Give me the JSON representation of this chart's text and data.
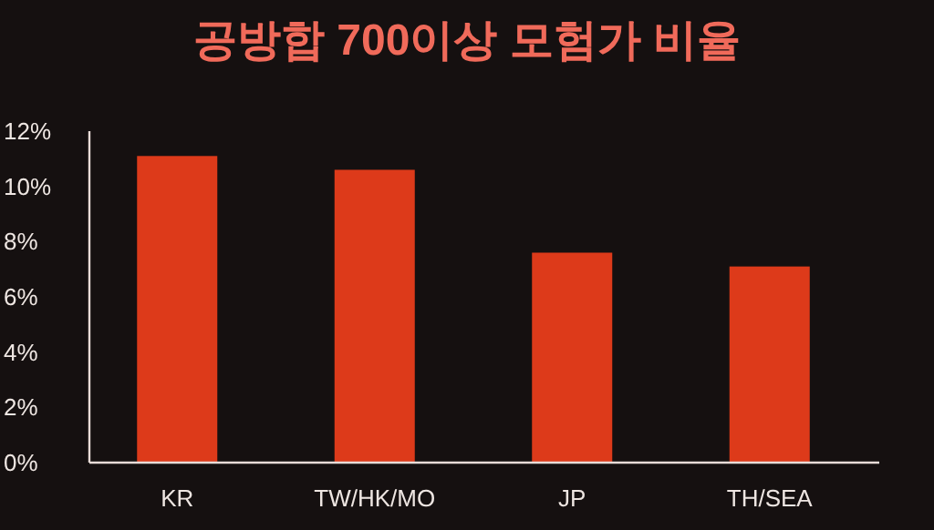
{
  "chart_data": {
    "type": "bar",
    "title": "공방합 700이상 모험가 비율",
    "categories": [
      "KR",
      "TW/HK/MO",
      "JP",
      "TH/SEA"
    ],
    "values": [
      11.1,
      10.6,
      7.6,
      7.1
    ],
    "color": "#dd3a1a",
    "ylim": [
      0,
      12
    ],
    "yticks": [
      {
        "value": 0,
        "label": "0%"
      },
      {
        "value": 2,
        "label": "2%"
      },
      {
        "value": 4,
        "label": "4%"
      },
      {
        "value": 6,
        "label": "6%"
      },
      {
        "value": 8,
        "label": "8%"
      },
      {
        "value": 10,
        "label": "10%"
      },
      {
        "value": 12,
        "label": "12%"
      }
    ],
    "grid": false
  }
}
